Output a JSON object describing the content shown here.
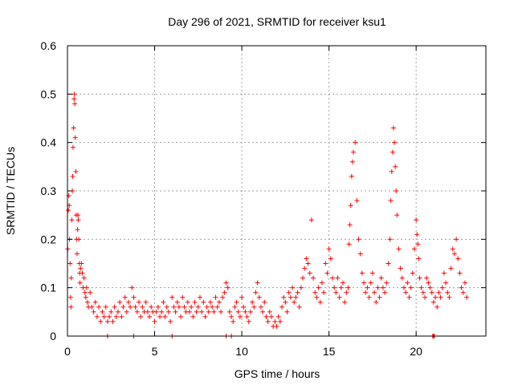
{
  "chart_data": {
    "type": "scatter",
    "title": "Day 296 of 2021, SRMTID for receiver ksu1",
    "xlabel": "GPS time / hours",
    "ylabel": "SRMTID / TECUs",
    "xlim": [
      0,
      24
    ],
    "ylim": [
      0,
      0.6
    ],
    "xticks": [
      0,
      5,
      10,
      15,
      20
    ],
    "yticks": [
      0,
      0.1,
      0.2,
      0.3,
      0.4,
      0.5,
      0.6
    ],
    "grid": true,
    "marker_color": "#ff0000",
    "marker": "plus",
    "series": [
      {
        "name": "SRMTID",
        "x": [
          0.02,
          0.05,
          0.08,
          0.1,
          0.12,
          0.15,
          0.18,
          0.2,
          0.22,
          0.25,
          0.28,
          0.3,
          0.32,
          0.35,
          0.38,
          0.4,
          0.42,
          0.45,
          0.48,
          0.5,
          0.52,
          0.55,
          0.58,
          0.6,
          0.62,
          0.65,
          0.68,
          0.7,
          0.72,
          0.75,
          0.8,
          0.85,
          0.9,
          0.95,
          1.0,
          1.05,
          1.1,
          1.15,
          1.2,
          1.3,
          1.4,
          1.5,
          1.6,
          1.7,
          1.8,
          1.9,
          2.0,
          2.1,
          2.2,
          2.3,
          2.4,
          2.5,
          2.6,
          2.7,
          2.8,
          2.9,
          3.0,
          3.1,
          3.2,
          3.3,
          3.4,
          3.5,
          3.6,
          3.7,
          3.8,
          3.9,
          4.0,
          4.1,
          4.2,
          4.3,
          4.4,
          4.5,
          4.6,
          4.7,
          4.8,
          4.9,
          5.0,
          5.1,
          5.2,
          5.3,
          5.4,
          5.5,
          5.6,
          5.7,
          5.8,
          5.9,
          6.0,
          6.1,
          6.2,
          6.3,
          6.4,
          6.5,
          6.6,
          6.7,
          6.8,
          6.9,
          7.0,
          7.1,
          7.2,
          7.3,
          7.4,
          7.5,
          7.6,
          7.7,
          7.8,
          7.9,
          8.0,
          8.1,
          8.2,
          8.3,
          8.4,
          8.5,
          8.6,
          8.7,
          8.8,
          8.9,
          9.0,
          9.1,
          9.2,
          9.3,
          9.4,
          9.5,
          9.6,
          9.7,
          9.8,
          9.9,
          10.0,
          10.1,
          10.2,
          10.3,
          10.4,
          10.5,
          10.6,
          10.7,
          10.8,
          10.9,
          11.0,
          11.1,
          11.2,
          11.3,
          11.4,
          11.5,
          11.6,
          11.7,
          11.8,
          11.9,
          12.0,
          12.1,
          12.2,
          12.3,
          12.4,
          12.5,
          12.6,
          12.7,
          12.8,
          12.9,
          13.0,
          13.1,
          13.2,
          13.3,
          13.4,
          13.5,
          13.6,
          13.7,
          13.8,
          13.9,
          14.0,
          14.1,
          14.2,
          14.3,
          14.4,
          14.5,
          14.6,
          14.7,
          14.8,
          14.9,
          15.0,
          15.1,
          15.2,
          15.3,
          15.4,
          15.5,
          15.6,
          15.7,
          15.8,
          15.9,
          16.0,
          16.1,
          16.15,
          16.2,
          16.25,
          16.3,
          16.35,
          16.4,
          16.5,
          16.6,
          16.7,
          16.8,
          16.9,
          17.0,
          17.1,
          17.2,
          17.3,
          17.4,
          17.5,
          17.6,
          17.7,
          17.8,
          17.9,
          18.0,
          18.1,
          18.2,
          18.3,
          18.4,
          18.5,
          18.55,
          18.6,
          18.65,
          18.7,
          18.75,
          18.8,
          18.85,
          18.9,
          19.0,
          19.1,
          19.2,
          19.3,
          19.4,
          19.5,
          19.6,
          19.7,
          19.8,
          19.9,
          20.0,
          20.05,
          20.1,
          20.15,
          20.2,
          20.3,
          20.4,
          20.5,
          20.6,
          20.7,
          20.8,
          20.9,
          21.0,
          21.1,
          21.2,
          21.3,
          21.4,
          21.5,
          21.6,
          21.7,
          21.8,
          21.9,
          22.0,
          22.1,
          22.2,
          22.3,
          22.4,
          22.5,
          22.6,
          22.7,
          22.8,
          22.9,
          2.3,
          3.8,
          6.0,
          9.1,
          9.4,
          20.95,
          21.0,
          21.05
        ],
        "y": [
          0.18,
          0.26,
          0.29,
          0.27,
          0.2,
          0.15,
          0.08,
          0.06,
          0.12,
          0.24,
          0.3,
          0.33,
          0.39,
          0.43,
          0.49,
          0.5,
          0.48,
          0.41,
          0.34,
          0.25,
          0.2,
          0.17,
          0.22,
          0.25,
          0.24,
          0.2,
          0.15,
          0.13,
          0.11,
          0.14,
          0.15,
          0.13,
          0.1,
          0.12,
          0.09,
          0.08,
          0.1,
          0.07,
          0.06,
          0.09,
          0.06,
          0.05,
          0.07,
          0.04,
          0.06,
          0.03,
          0.05,
          0.04,
          0.06,
          0.03,
          0.04,
          0.05,
          0.03,
          0.06,
          0.04,
          0.05,
          0.07,
          0.04,
          0.06,
          0.08,
          0.05,
          0.07,
          0.06,
          0.1,
          0.08,
          0.06,
          0.05,
          0.07,
          0.04,
          0.06,
          0.05,
          0.07,
          0.05,
          0.04,
          0.06,
          0.05,
          0.03,
          0.05,
          0.06,
          0.04,
          0.05,
          0.07,
          0.04,
          0.06,
          0.05,
          0.03,
          0.08,
          0.06,
          0.05,
          0.07,
          0.06,
          0.04,
          0.08,
          0.06,
          0.05,
          0.07,
          0.05,
          0.06,
          0.04,
          0.07,
          0.05,
          0.06,
          0.08,
          0.05,
          0.07,
          0.04,
          0.06,
          0.05,
          0.07,
          0.06,
          0.05,
          0.08,
          0.06,
          0.07,
          0.05,
          0.08,
          0.09,
          0.11,
          0.1,
          0.05,
          0.04,
          0.03,
          0.06,
          0.07,
          0.05,
          0.04,
          0.08,
          0.06,
          0.05,
          0.04,
          0.03,
          0.05,
          0.07,
          0.06,
          0.09,
          0.11,
          0.08,
          0.06,
          0.05,
          0.07,
          0.04,
          0.03,
          0.05,
          0.04,
          0.02,
          0.03,
          0.02,
          0.04,
          0.03,
          0.06,
          0.08,
          0.07,
          0.05,
          0.09,
          0.08,
          0.1,
          0.07,
          0.08,
          0.09,
          0.06,
          0.1,
          0.12,
          0.14,
          0.16,
          0.15,
          0.13,
          0.24,
          0.12,
          0.09,
          0.08,
          0.1,
          0.07,
          0.11,
          0.09,
          0.15,
          0.13,
          0.18,
          0.16,
          0.12,
          0.1,
          0.09,
          0.12,
          0.08,
          0.1,
          0.11,
          0.07,
          0.09,
          0.1,
          0.19,
          0.23,
          0.27,
          0.33,
          0.36,
          0.38,
          0.4,
          0.28,
          0.2,
          0.17,
          0.13,
          0.11,
          0.09,
          0.1,
          0.08,
          0.11,
          0.13,
          0.09,
          0.07,
          0.1,
          0.08,
          0.12,
          0.1,
          0.09,
          0.11,
          0.15,
          0.2,
          0.28,
          0.34,
          0.38,
          0.43,
          0.4,
          0.35,
          0.3,
          0.25,
          0.18,
          0.14,
          0.12,
          0.1,
          0.09,
          0.11,
          0.08,
          0.1,
          0.13,
          0.18,
          0.24,
          0.21,
          0.19,
          0.16,
          0.12,
          0.1,
          0.09,
          0.08,
          0.12,
          0.11,
          0.1,
          0.09,
          0.07,
          0.08,
          0.06,
          0.09,
          0.08,
          0.1,
          0.13,
          0.11,
          0.09,
          0.08,
          0.14,
          0.18,
          0.17,
          0.2,
          0.16,
          0.13,
          0.1,
          0.09,
          0.11,
          0.08,
          0.0,
          0.0,
          0.0,
          0.0,
          0.0,
          0.0,
          0.0,
          0.0
        ]
      }
    ]
  }
}
